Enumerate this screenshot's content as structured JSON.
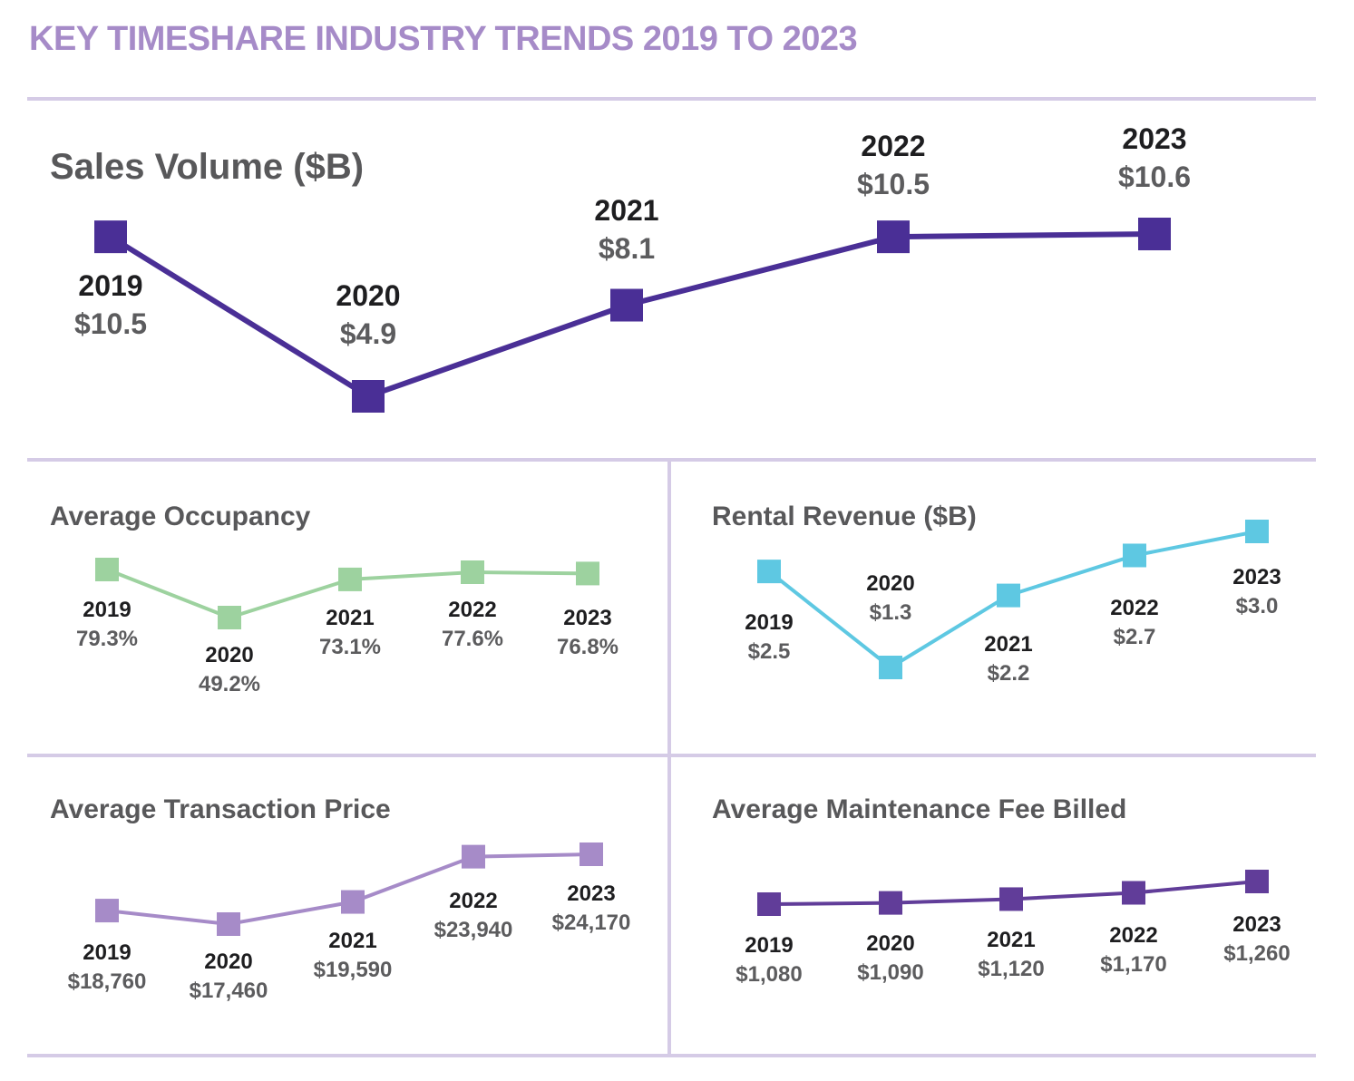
{
  "page_title": "KEY TIMESHARE INDUSTRY TRENDS 2019 TO 2023",
  "colors": {
    "title": "#a68bc8",
    "divider": "#d5cbe6",
    "sales_volume": "#4a2f96",
    "occupancy": "#9dd29f",
    "rental_revenue": "#5ec8e2",
    "transaction_price": "#a68bc8",
    "maintenance_fee": "#613d99"
  },
  "chart_data": [
    {
      "id": "sales_volume",
      "type": "line",
      "title": "Sales Volume ($B)",
      "categories": [
        "2019",
        "2020",
        "2021",
        "2022",
        "2023"
      ],
      "values": [
        10.5,
        4.9,
        8.1,
        10.5,
        10.6
      ],
      "labels": [
        "$10.5",
        "$4.9",
        "$8.1",
        "$10.5",
        "$10.6"
      ],
      "label_position": [
        "below",
        "above",
        "above",
        "above",
        "above"
      ],
      "xlabel": "",
      "ylabel": "",
      "grid": false,
      "axes": false
    },
    {
      "id": "occupancy",
      "type": "line",
      "title": "Average Occupancy",
      "categories": [
        "2019",
        "2020",
        "2021",
        "2022",
        "2023"
      ],
      "values": [
        79.3,
        49.2,
        73.1,
        77.6,
        76.8
      ],
      "labels": [
        "79.3%",
        "49.2%",
        "73.1%",
        "77.6%",
        "76.8%"
      ],
      "label_position": [
        "below",
        "below",
        "below",
        "below",
        "below"
      ],
      "xlabel": "",
      "ylabel": "",
      "grid": false,
      "axes": false
    },
    {
      "id": "rental_revenue",
      "type": "line",
      "title": "Rental Revenue ($B)",
      "categories": [
        "2019",
        "2020",
        "2021",
        "2022",
        "2023"
      ],
      "values": [
        2.5,
        1.3,
        2.2,
        2.7,
        3.0
      ],
      "labels": [
        "$2.5",
        "$1.3",
        "$2.2",
        "$2.7",
        "$3.0"
      ],
      "label_position": [
        "below",
        "above",
        "below",
        "below",
        "below"
      ],
      "xlabel": "",
      "ylabel": "",
      "grid": false,
      "axes": false
    },
    {
      "id": "transaction_price",
      "type": "line",
      "title": "Average Transaction Price",
      "categories": [
        "2019",
        "2020",
        "2021",
        "2022",
        "2023"
      ],
      "values": [
        18760,
        17460,
        19590,
        23940,
        24170
      ],
      "labels": [
        "$18,760",
        "$17,460",
        "$19,590",
        "$23,940",
        "$24,170"
      ],
      "label_position": [
        "below",
        "below",
        "below",
        "below",
        "below"
      ],
      "xlabel": "",
      "ylabel": "",
      "grid": false,
      "axes": false
    },
    {
      "id": "maintenance_fee",
      "type": "line",
      "title": "Average Maintenance Fee Billed",
      "categories": [
        "2019",
        "2020",
        "2021",
        "2022",
        "2023"
      ],
      "values": [
        1080,
        1090,
        1120,
        1170,
        1260
      ],
      "labels": [
        "$1,080",
        "$1,090",
        "$1,120",
        "$1,170",
        "$1,260"
      ],
      "label_position": [
        "below",
        "below",
        "below",
        "below",
        "below"
      ],
      "xlabel": "",
      "ylabel": "",
      "grid": false,
      "axes": false
    }
  ]
}
